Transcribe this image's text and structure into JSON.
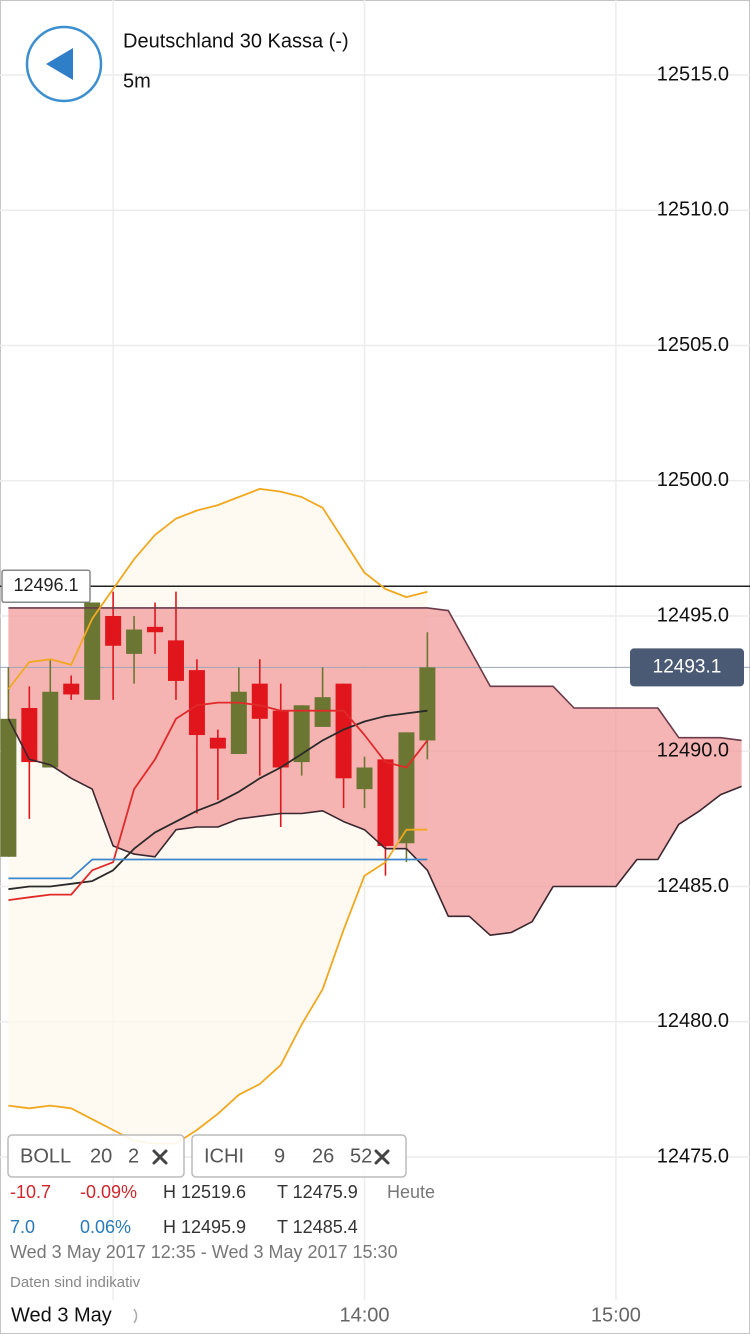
{
  "chart_data": {
    "type": "candlestick",
    "title": "Deutschland 30 Kassa (-)",
    "subtitle": "5m",
    "x_label": "Wed 3 May",
    "xlim": [
      753,
      932
    ],
    "xticks": [
      {
        "value": 780,
        "label": null
      },
      {
        "value": 840,
        "label": "14:00"
      },
      {
        "value": 900,
        "label": "15:00"
      }
    ],
    "ylim": [
      12470,
      12517.5
    ],
    "yticks": [
      {
        "value": 12475,
        "label": "12475.0"
      },
      {
        "value": 12480,
        "label": "12480.0"
      },
      {
        "value": 12485,
        "label": "12485.0"
      },
      {
        "value": 12490,
        "label": "12490.0"
      },
      {
        "value": 12495,
        "label": "12495.0"
      },
      {
        "value": 12500,
        "label": "12500.0"
      },
      {
        "value": 12505,
        "label": "12505.0"
      },
      {
        "value": 12510,
        "label": "12510.0"
      },
      {
        "value": 12515,
        "label": "12515.0"
      }
    ],
    "grid": true,
    "x": [
      755,
      760,
      765,
      770,
      775,
      780,
      785,
      790,
      795,
      800,
      805,
      810,
      815,
      820,
      825,
      830,
      835,
      840,
      845,
      850,
      855,
      860,
      865,
      870,
      875,
      880,
      885,
      890,
      895,
      900,
      905,
      910,
      915,
      920,
      925,
      930
    ],
    "candles": {
      "up_color": "#6b7632",
      "down_color": "#e0161c",
      "open": [
        12486.1,
        12491.6,
        12489.4,
        12492.5,
        12491.9,
        12495.0,
        12493.6,
        12494.6,
        12494.1,
        12493.0,
        12490.5,
        12489.9,
        12492.5,
        12491.5,
        12489.6,
        12490.9,
        12492.5,
        12488.6,
        12489.7,
        12486.6,
        12490.4,
        null,
        null,
        null,
        null,
        null,
        null,
        null,
        null,
        null,
        null,
        null,
        null,
        null,
        null,
        null
      ],
      "high": [
        12493.1,
        12492.4,
        12493.4,
        12492.8,
        12495.5,
        12495.9,
        12495.0,
        12495.5,
        12495.9,
        12493.4,
        12490.8,
        12493.1,
        12493.4,
        12492.5,
        12491.7,
        12493.1,
        12492.5,
        12489.8,
        12489.7,
        12490.7,
        12494.4,
        null,
        null,
        null,
        null,
        null,
        null,
        null,
        null,
        null,
        null,
        null,
        null,
        null,
        null,
        null
      ],
      "low": [
        12486.1,
        12487.5,
        12489.4,
        12491.9,
        12491.9,
        12491.9,
        12492.5,
        12493.6,
        12491.9,
        12487.7,
        12488.2,
        12489.9,
        12489.1,
        12487.2,
        12489.1,
        12490.9,
        12487.9,
        12487.9,
        12485.4,
        12485.9,
        12489.7,
        null,
        null,
        null,
        null,
        null,
        null,
        null,
        null,
        null,
        null,
        null,
        null,
        null,
        null,
        null
      ],
      "close": [
        12491.2,
        12489.6,
        12492.2,
        12492.1,
        12495.5,
        12493.9,
        12494.5,
        12494.4,
        12492.6,
        12490.6,
        12490.1,
        12492.2,
        12491.2,
        12489.4,
        12491.7,
        12492.0,
        12489.0,
        12489.4,
        12486.5,
        12490.7,
        12493.1,
        null,
        null,
        null,
        null,
        null,
        null,
        null,
        null,
        null,
        null,
        null,
        null,
        null,
        null,
        null
      ]
    },
    "bollinger": {
      "fill": "#fdf8ec",
      "upper": {
        "color": "#f0a820",
        "values": [
          12492.3,
          12493.3,
          12493.4,
          12493.2,
          12494.9,
          12496.0,
          12497.1,
          12498.0,
          12498.6,
          12498.9,
          12499.1,
          12499.4,
          12499.7,
          12499.6,
          12499.4,
          12499.0,
          12497.8,
          12496.6,
          12496.0,
          12495.7,
          12495.9,
          null,
          null,
          null,
          null,
          null,
          null,
          null,
          null,
          null,
          null,
          null,
          null,
          null,
          null,
          null
        ]
      },
      "middle": {
        "color": "#2a2a2a",
        "values": [
          12484.9,
          12485.0,
          12485.0,
          12485.1,
          12485.2,
          12485.6,
          12486.4,
          12487.0,
          12487.4,
          12487.8,
          12488.1,
          12488.5,
          12489.0,
          12489.4,
          12489.9,
          12490.4,
          12490.8,
          12491.1,
          12491.3,
          12491.4,
          12491.5,
          null,
          null,
          null,
          null,
          null,
          null,
          null,
          null,
          null,
          null,
          null,
          null,
          null,
          null,
          null
        ]
      },
      "lower": {
        "color": "#f0a820",
        "values": [
          12476.9,
          12476.8,
          12476.9,
          12476.8,
          12476.4,
          12476.0,
          12475.6,
          12475.5,
          12475.5,
          12476.0,
          12476.6,
          12477.3,
          12477.7,
          12478.4,
          12479.9,
          12481.2,
          12483.4,
          12485.4,
          12485.9,
          12487.1,
          12487.1,
          null,
          null,
          null,
          null,
          null,
          null,
          null,
          null,
          null,
          null,
          null,
          null,
          null,
          null,
          null
        ]
      }
    },
    "ichimoku": {
      "fill": "#f19c9c",
      "tenkan": {
        "color": "#e02a2a",
        "values": [
          12484.5,
          12484.6,
          12484.7,
          12484.7,
          12485.6,
          12485.9,
          12488.6,
          12489.7,
          12491.2,
          12491.7,
          12491.8,
          12491.8,
          12491.7,
          12491.5,
          12491.5,
          12491.5,
          12491.5,
          12490.6,
          12489.6,
          12489.4,
          12490.4,
          null,
          null,
          null,
          null,
          null,
          null,
          null,
          null,
          null,
          null,
          null,
          null,
          null,
          null,
          null
        ]
      },
      "kijun": {
        "color": "#3d86c9",
        "values": [
          12485.3,
          12485.3,
          12485.3,
          12485.3,
          12486.0,
          12486.0,
          12486.0,
          12486.0,
          12486.0,
          12486.0,
          12486.0,
          12486.0,
          12486.0,
          12486.0,
          12486.0,
          12486.0,
          12486.0,
          12486.0,
          12486.0,
          12486.0,
          12486.0,
          null,
          null,
          null,
          null,
          null,
          null,
          null,
          null,
          null,
          null,
          null,
          null,
          null,
          null,
          null
        ]
      },
      "span_a": {
        "color": "#6a3b4a",
        "values": [
          12495.3,
          12495.3,
          12495.3,
          12495.3,
          12495.3,
          12495.3,
          12495.3,
          12495.3,
          12495.3,
          12495.3,
          12495.3,
          12495.3,
          12495.3,
          12495.3,
          12495.3,
          12495.3,
          12495.3,
          12495.3,
          12495.3,
          12495.3,
          12495.3,
          12495.2,
          12493.8,
          12492.4,
          12492.4,
          12492.4,
          12492.4,
          12491.6,
          12491.6,
          12491.6,
          12491.6,
          12491.6,
          12490.5,
          12490.5,
          12490.5,
          12490.4
        ]
      },
      "span_b": {
        "color": "#3a2730",
        "values": [
          12491.2,
          12489.7,
          12489.5,
          12489.0,
          12488.6,
          12486.5,
          12486.2,
          12486.1,
          12487.1,
          12487.2,
          12487.2,
          12487.5,
          12487.6,
          12487.7,
          12487.7,
          12487.8,
          12487.4,
          12487.1,
          12486.4,
          12486.4,
          12485.6,
          12483.9,
          12483.9,
          12483.2,
          12483.3,
          12483.7,
          12485.0,
          12485.0,
          12485.0,
          12485.0,
          12486.0,
          12486.0,
          12487.3,
          12487.8,
          12488.4,
          12488.7
        ]
      }
    },
    "price_lines": [
      {
        "value": 12496.1,
        "color": "#222222",
        "label_side": "left"
      },
      {
        "value": 12493.1,
        "color": "#9aa6b4",
        "label_side": "right"
      }
    ]
  },
  "indicators": [
    {
      "name": "BOLL",
      "params": [
        20,
        2
      ]
    },
    {
      "name": "ICHI",
      "params": [
        9,
        26,
        52
      ]
    }
  ],
  "stats": {
    "rows": [
      [
        "-10.7",
        "-0.09%",
        "H 12519.6",
        "T 12475.9",
        "Heute"
      ],
      [
        "7.0",
        "0.06%",
        "H 12495.9",
        "T 12485.4"
      ]
    ],
    "range": "Wed 3 May 2017 12:35 - Wed 3 May 2017 15:30",
    "note": "Daten sind indikativ"
  }
}
